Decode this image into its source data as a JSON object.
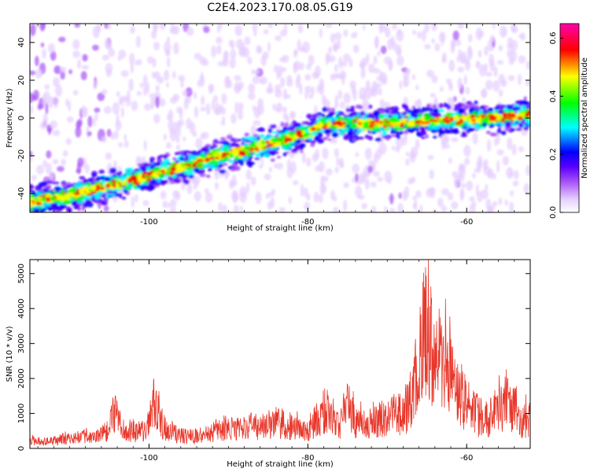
{
  "title": "C2E4.2023.170.08.05.G19",
  "chart_data": [
    {
      "type": "heatmap",
      "xlabel": "Height of straight line (km)",
      "ylabel": "Frequency (Hz)",
      "xlim": [
        -115,
        -52
      ],
      "ylim": [
        -50,
        50
      ],
      "xticks": [
        -100,
        -80,
        -60
      ],
      "yticks": [
        -40,
        -20,
        0,
        20,
        40
      ],
      "colorbar": {
        "label": "Normalized spectral amplitude",
        "range": [
          0,
          0.65
        ],
        "ticks": [
          "0.0",
          "0.2",
          "0.4",
          "0.6"
        ],
        "tick_values": [
          0.0,
          0.2,
          0.4,
          0.6
        ],
        "colors": [
          "#ffffff",
          "#e6cfff",
          "#a855f7",
          "#5b00ff",
          "#0000ff",
          "#00ffff",
          "#00ff00",
          "#ffff00",
          "#ff0000",
          "#ff00aa"
        ]
      },
      "ridge": {
        "x": [
          -115,
          -110,
          -105,
          -100,
          -95,
          -90,
          -85,
          -80,
          -78,
          -75,
          -70,
          -65,
          -60,
          -55,
          -52
        ],
        "freq": [
          -45,
          -41,
          -36,
          -31,
          -25,
          -19,
          -14,
          -8,
          -4,
          -3,
          -2.5,
          -1.8,
          -1,
          0,
          2
        ]
      }
    },
    {
      "type": "line",
      "xlabel": "Height of straight line (km)",
      "ylabel": "SNR (10 * v/v)",
      "xlim": [
        -115,
        -52
      ],
      "ylim": [
        0,
        5400
      ],
      "xticks": [
        -100,
        -80,
        -60
      ],
      "yticks": [
        0,
        1000,
        2000,
        3000,
        4000,
        5000
      ],
      "color": "#e8372a",
      "series": [
        {
          "x": [
            -115,
            -113,
            -111,
            -109,
            -107,
            -105,
            -104.5,
            -103,
            -101,
            -100,
            -99.5,
            -98,
            -96,
            -94,
            -92,
            -90,
            -88,
            -86,
            -84,
            -82,
            -80,
            -78,
            -76,
            -75,
            -74,
            -72,
            -70,
            -68,
            -67,
            -66,
            -65.5,
            -65,
            -64,
            -63,
            -62,
            -61,
            -60,
            -59,
            -58,
            -57,
            -56,
            -55,
            -54,
            -53,
            -52
          ],
          "values": [
            300,
            280,
            350,
            450,
            500,
            700,
            1500,
            650,
            700,
            950,
            1800,
            800,
            500,
            500,
            650,
            800,
            750,
            900,
            1000,
            900,
            650,
            1500,
            900,
            1800,
            1100,
            1000,
            1300,
            1400,
            2000,
            3200,
            4400,
            5400,
            3200,
            4000,
            2900,
            2300,
            1800,
            1500,
            1100,
            1300,
            1600,
            1800,
            1700,
            1100,
            1300
          ]
        }
      ]
    }
  ]
}
